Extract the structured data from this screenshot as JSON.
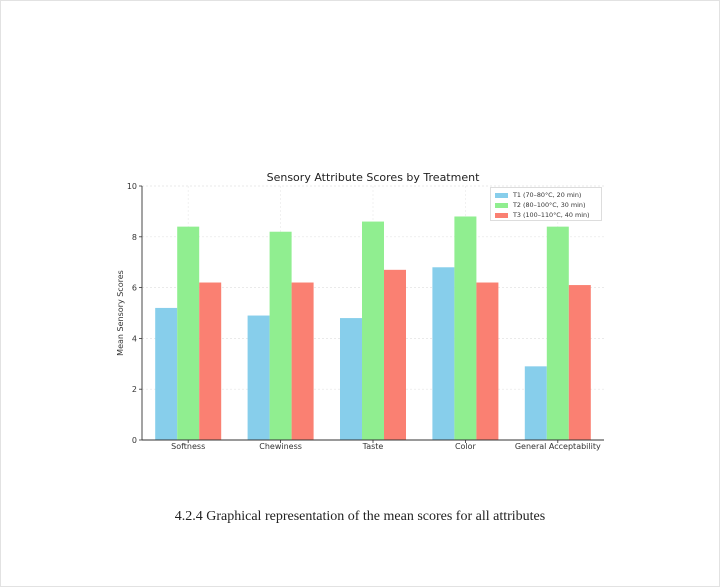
{
  "chart_data": {
    "type": "bar",
    "title": "Sensory Attribute Scores by Treatment",
    "xlabel": "",
    "ylabel": "Mean Sensory Scores",
    "ylim": [
      0,
      10
    ],
    "yticks": [
      0,
      2,
      4,
      6,
      8,
      10
    ],
    "grid": true,
    "legend_position": "top-right",
    "categories": [
      "Softness",
      "Chewiness",
      "Taste",
      "Color",
      "General Acceptability"
    ],
    "series": [
      {
        "name": "T1 (70–80°C, 20 min)",
        "color": "#87ceeb",
        "values": [
          5.2,
          4.9,
          4.8,
          6.8,
          2.9
        ]
      },
      {
        "name": "T2 (80–100°C, 30 min)",
        "color": "#90ee90",
        "values": [
          8.4,
          8.2,
          8.6,
          8.8,
          8.4
        ]
      },
      {
        "name": "T3 (100–110°C, 40 min)",
        "color": "#fa8072",
        "values": [
          6.2,
          6.2,
          6.7,
          6.2,
          6.1
        ]
      }
    ]
  },
  "caption": "4.2.4 Graphical representation of the mean scores for all attributes"
}
